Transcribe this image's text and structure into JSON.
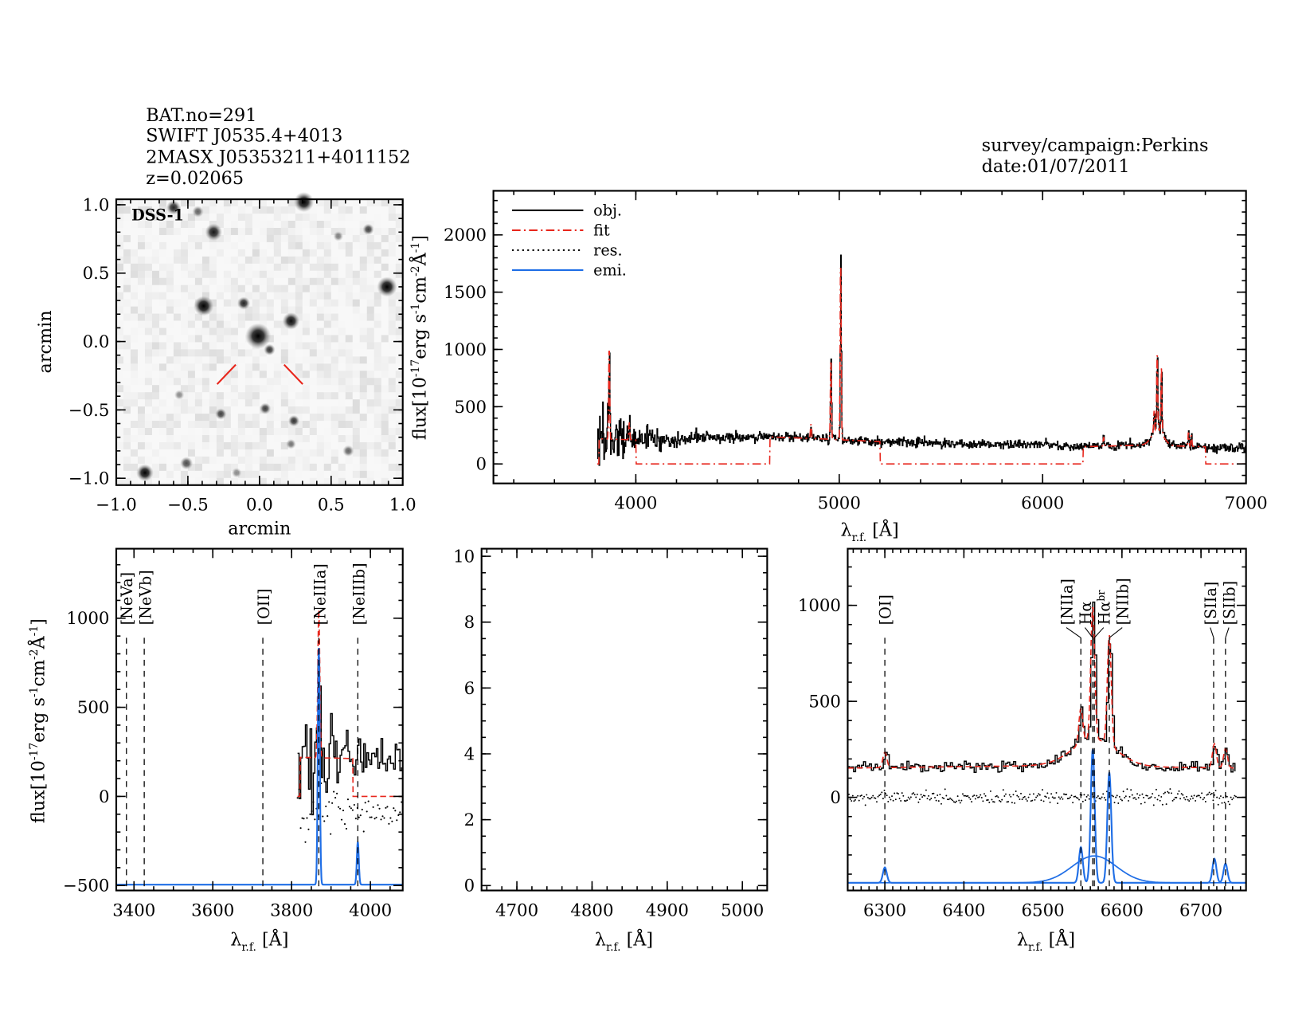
{
  "header": {
    "bat": "BAT.no=291",
    "swift": "SWIFT J0535.4+4013",
    "twomass": "2MASX J05353211+4011152",
    "redshift": "z=0.02065",
    "survey": "survey/campaign:Perkins",
    "date": "date:01/07/2011"
  },
  "labels": {
    "lambda": {
      "symbol": "λ",
      "sub": "r.f.",
      "unit": " [Å]"
    },
    "flux": [
      [
        "flux[10",
        0
      ],
      [
        "-17",
        1
      ],
      [
        "erg s",
        0
      ],
      [
        "-1",
        1
      ],
      [
        "cm",
        0
      ],
      [
        "-2",
        1
      ],
      [
        "Å",
        0
      ],
      [
        "-1",
        1
      ],
      [
        "]",
        0
      ]
    ],
    "arcmin": "arcmin"
  },
  "colors": {
    "obj": "#000000",
    "fit": "#e8281e",
    "emi": "#1f6ee6",
    "residual": "#000000"
  },
  "chart_data": [
    {
      "type": "image",
      "label": "DSS-1",
      "xlabel": "arcmin",
      "ylabel": "arcmin",
      "xlim": [
        -1,
        1
      ],
      "ylim": [
        -1.05,
        1.04
      ],
      "xticks": [
        [
          -1,
          "−1.0"
        ],
        [
          -0.5,
          "−0.5"
        ],
        [
          0,
          "0.0"
        ],
        [
          0.5,
          "0.5"
        ],
        [
          1,
          "1.0"
        ]
      ],
      "yticks": [
        [
          -1,
          "−1.0"
        ],
        [
          -0.5,
          "−0.5"
        ],
        [
          0,
          "0.0"
        ],
        [
          0.5,
          "0.5"
        ],
        [
          1,
          "1.0"
        ]
      ],
      "stars": [
        [
          -0.39,
          0.26,
          1,
          0.07
        ],
        [
          -0.01,
          0.04,
          1,
          0.09
        ],
        [
          0.22,
          0.15,
          0.95,
          0.06
        ],
        [
          -0.11,
          0.28,
          0.85,
          0.045
        ],
        [
          0.07,
          -0.06,
          0.8,
          0.04
        ],
        [
          0.89,
          0.4,
          1,
          0.07
        ],
        [
          -0.32,
          0.8,
          0.9,
          0.06
        ],
        [
          0.31,
          1.02,
          1,
          0.07
        ],
        [
          -0.6,
          0.98,
          0.85,
          0.05
        ],
        [
          -0.8,
          -0.96,
          1,
          0.06
        ],
        [
          -0.51,
          -0.89,
          0.7,
          0.045
        ],
        [
          -0.27,
          -0.53,
          0.75,
          0.04
        ],
        [
          0.04,
          -0.49,
          0.75,
          0.04
        ],
        [
          0.24,
          -0.58,
          0.8,
          0.04
        ],
        [
          0.22,
          -0.75,
          0.55,
          0.035
        ],
        [
          0.62,
          -0.8,
          0.6,
          0.04
        ],
        [
          0.76,
          0.82,
          0.75,
          0.04
        ],
        [
          -0.56,
          -0.39,
          0.45,
          0.035
        ],
        [
          -0.16,
          -0.96,
          0.45,
          0.035
        ],
        [
          -0.43,
          0.95,
          0.6,
          0.04
        ],
        [
          0.55,
          0.77,
          0.5,
          0.035
        ]
      ],
      "target_marker_color": "#e8281e"
    },
    {
      "type": "line",
      "xlabel": "λr.f. [Å]",
      "xlim": [
        3300,
        7000
      ],
      "ylim": [
        -170,
        2385
      ],
      "xticks": [
        [
          4000,
          "4000"
        ],
        [
          5000,
          "5000"
        ],
        [
          6000,
          "6000"
        ],
        [
          7000,
          "7000"
        ]
      ],
      "yticks": [
        [
          0,
          "0"
        ],
        [
          500,
          "500"
        ],
        [
          1000,
          "1000"
        ],
        [
          1500,
          "1500"
        ],
        [
          2000,
          "2000"
        ]
      ],
      "legend": [
        "obj.",
        "fit",
        "res.",
        "emi."
      ],
      "legend_position": "top-left",
      "obj_range": [
        3810,
        7000
      ],
      "continuum": [
        [
          3810,
          220
        ],
        [
          4000,
          210
        ],
        [
          4300,
          230
        ],
        [
          4600,
          240
        ],
        [
          4900,
          220
        ],
        [
          5200,
          195
        ],
        [
          5600,
          180
        ],
        [
          6000,
          165
        ],
        [
          6200,
          150
        ],
        [
          6500,
          165
        ],
        [
          7000,
          140
        ]
      ],
      "lines": [
        {
          "center": 3869,
          "amp": 830,
          "sigma": 2.5
        },
        {
          "center": 3968,
          "amp": 150,
          "sigma": 2.5
        },
        {
          "center": 4861,
          "amp": 130,
          "sigma": 2.5
        },
        {
          "center": 4959,
          "amp": 720,
          "sigma": 2.5
        },
        {
          "center": 5007,
          "amp": 1620,
          "sigma": 2.5
        },
        {
          "center": 6300,
          "amp": 80,
          "sigma": 2.5
        },
        {
          "center": 6548,
          "amp": 185,
          "sigma": 2.5
        },
        {
          "center": 6563,
          "amp": 695,
          "sigma": 2.5
        },
        {
          "center": 6565,
          "amp": 140,
          "sigma": 28
        },
        {
          "center": 6584,
          "amp": 575,
          "sigma": 2.5
        },
        {
          "center": 6717,
          "amp": 125,
          "sigma": 2.5
        },
        {
          "center": 6731,
          "amp": 100,
          "sigma": 2.5
        }
      ],
      "fit_windows": [
        [
          3820,
          4000
        ],
        [
          4660,
          5200
        ],
        [
          6200,
          6800
        ]
      ]
    },
    {
      "type": "line",
      "xlabel": "λr.f. [Å]",
      "xlim": [
        3355,
        4082
      ],
      "ylim": [
        -528,
        1390
      ],
      "xticks": [
        [
          3400,
          "3400"
        ],
        [
          3600,
          "3600"
        ],
        [
          3800,
          "3800"
        ],
        [
          4000,
          "4000"
        ]
      ],
      "yticks": [
        [
          -500,
          "−500"
        ],
        [
          0,
          "0"
        ],
        [
          500,
          "500"
        ],
        [
          1000,
          "1000"
        ]
      ],
      "obj_range": [
        3815,
        4082
      ],
      "fit_window": [
        3822,
        3955
      ],
      "emi_offset": -495,
      "markers": [
        {
          "label": "[NeVa]",
          "wavelength": 3346,
          "color": "red"
        },
        {
          "label": "[NeVb]",
          "wavelength": 3426,
          "color": "red"
        },
        {
          "label": "[OII]",
          "wavelength": 3727,
          "color": "red"
        },
        {
          "label": "[NeIIIa]",
          "wavelength": 3869,
          "color": "black"
        },
        {
          "label": "[NeIIIb]",
          "wavelength": 3968,
          "color": "red"
        }
      ]
    },
    {
      "type": "line",
      "xlabel": "λr.f. [Å]",
      "xlim": [
        4653,
        5033
      ],
      "ylim": [
        -0.15,
        10.23
      ],
      "xticks": [
        [
          4700,
          "4700"
        ],
        [
          4800,
          "4800"
        ],
        [
          4900,
          "4900"
        ],
        [
          5000,
          "5000"
        ]
      ],
      "yticks": [
        [
          0,
          "0"
        ],
        [
          2,
          "2"
        ],
        [
          4,
          "4"
        ],
        [
          6,
          "6"
        ],
        [
          8,
          "8"
        ],
        [
          10,
          "10"
        ]
      ]
    },
    {
      "type": "line",
      "xlabel": "λr.f. [Å]",
      "xlim": [
        6253,
        6757
      ],
      "ylim": [
        -485,
        1295
      ],
      "xticks": [
        [
          6300,
          "6300"
        ],
        [
          6400,
          "6400"
        ],
        [
          6500,
          "6500"
        ],
        [
          6600,
          "6600"
        ],
        [
          6700,
          "6700"
        ]
      ],
      "yticks": [
        [
          0,
          "0"
        ],
        [
          500,
          "500"
        ],
        [
          1000,
          "1000"
        ]
      ],
      "obj_range": [
        6253,
        6745
      ],
      "emi_offset": -445,
      "markers": [
        {
          "label": "[OI]",
          "wavelength": 6300,
          "color": "red"
        },
        {
          "label": "[NIIa]",
          "wavelength": 6548,
          "color": "black"
        },
        {
          "label": "Hα",
          "wavelength": 6563,
          "color": "black"
        },
        {
          "label": "Hαbr",
          "wavelength": 6565,
          "color": "black"
        },
        {
          "label": "[NIIb]",
          "wavelength": 6584,
          "color": "black"
        },
        {
          "label": "[SIIa]",
          "wavelength": 6716,
          "color": "black"
        },
        {
          "label": "[SIIb]",
          "wavelength": 6731,
          "color": "black"
        }
      ]
    }
  ]
}
